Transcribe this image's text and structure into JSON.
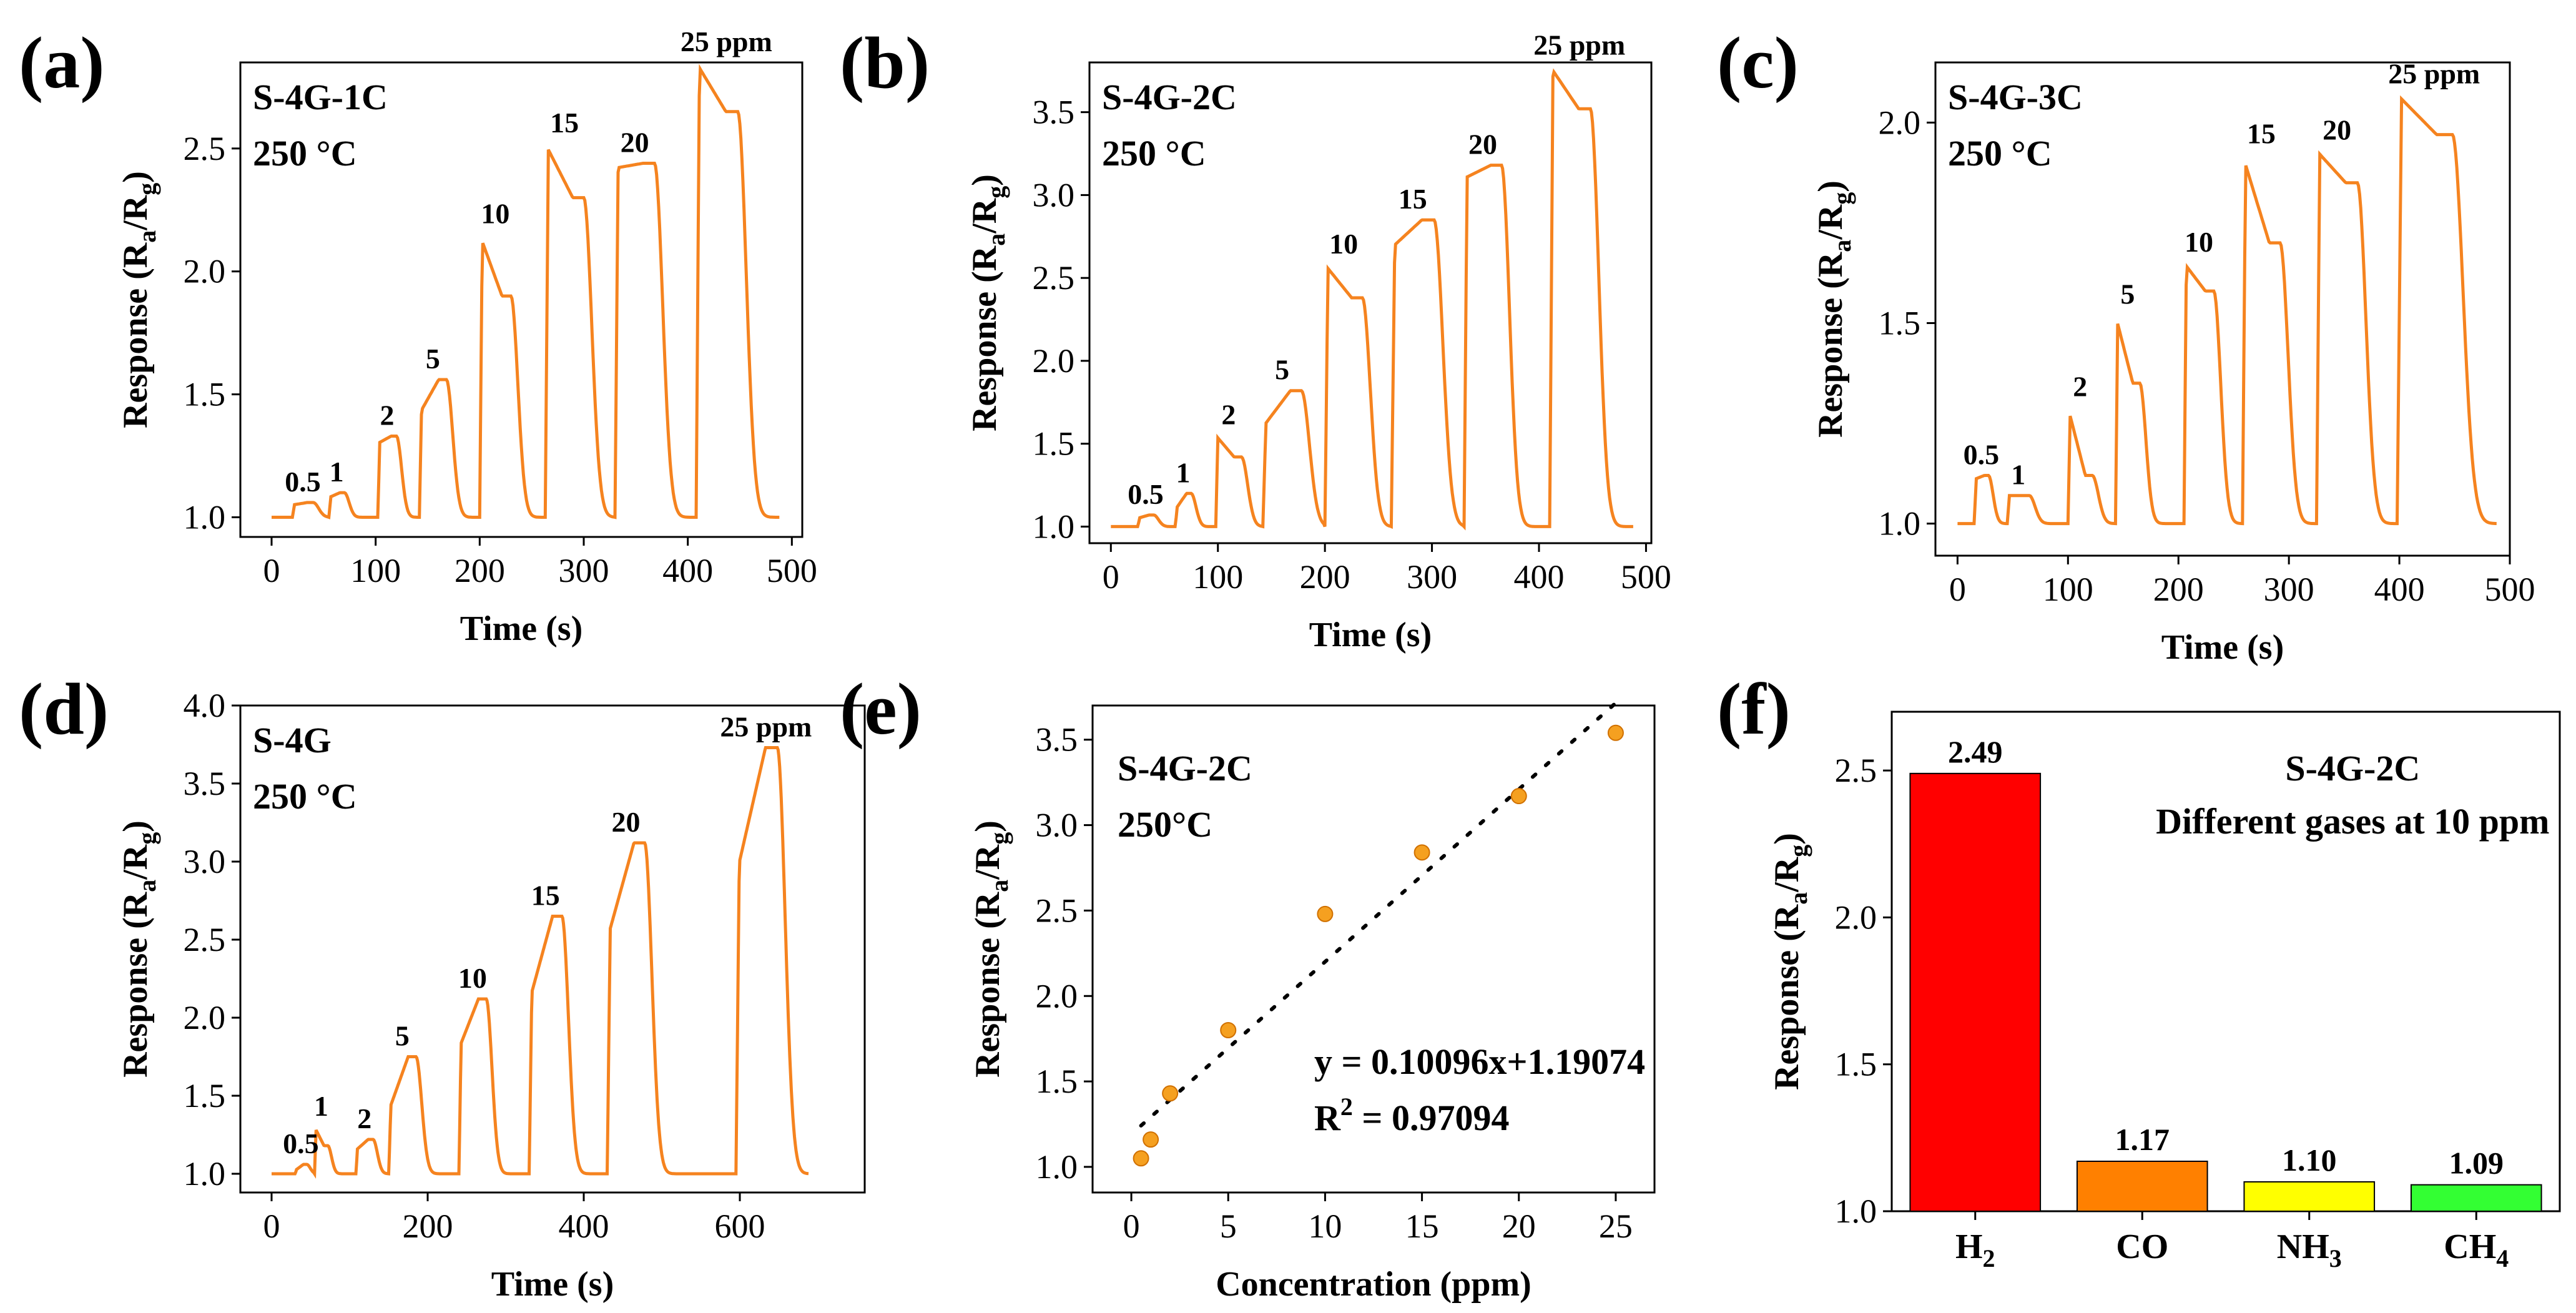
{
  "colors": {
    "curve": "#f5831f",
    "axis": "#000000"
  },
  "chart_data": [
    {
      "id": "a",
      "type": "line",
      "panel_label": "(a)",
      "sample": "S-4G-1C",
      "temperature": "250 °C",
      "xlabel": "Time (s)",
      "ylabel_main": "Response (R",
      "ylabel_sub_a": "a",
      "ylabel_mid": "/R",
      "ylabel_sub_g": "g",
      "ylabel_end": ")",
      "xlim": [
        -30,
        510
      ],
      "ylim": [
        0.92,
        2.85
      ],
      "xticks": [
        0,
        100,
        200,
        300,
        400,
        500
      ],
      "yticks": [
        1.0,
        1.5,
        2.0,
        2.5
      ],
      "pulses": [
        {
          "label": "0.5",
          "on": 20,
          "off": 40,
          "peak": 1.06,
          "start": 1.05
        },
        {
          "label": "1",
          "on": 55,
          "off": 70,
          "peak": 1.1,
          "start": 1.08
        },
        {
          "label": "2",
          "on": 102,
          "off": 120,
          "peak": 1.33,
          "start": 1.3
        },
        {
          "label": "5",
          "on": 142,
          "off": 168,
          "peak": 1.56,
          "start": 1.42
        },
        {
          "label": "10",
          "on": 200,
          "off": 230,
          "peak": 1.9,
          "start": 2.15
        },
        {
          "label": "15",
          "on": 263,
          "off": 300,
          "peak": 2.3,
          "start": 2.52
        },
        {
          "label": "20",
          "on": 330,
          "off": 368,
          "peak": 2.44,
          "start": 2.42
        },
        {
          "label": "25 ppm",
          "on": 408,
          "off": 448,
          "peak": 2.65,
          "start": 2.85
        }
      ]
    },
    {
      "id": "b",
      "type": "line",
      "panel_label": "(b)",
      "sample": "S-4G-2C",
      "temperature": "250 °C",
      "xlabel": "Time (s)",
      "ylabel_main": "Response (R",
      "ylabel_sub_a": "a",
      "ylabel_mid": "/R",
      "ylabel_sub_g": "g",
      "ylabel_end": ")",
      "xlim": [
        -20,
        505
      ],
      "ylim": [
        0.9,
        3.8
      ],
      "xticks": [
        0,
        100,
        200,
        300,
        400,
        500
      ],
      "yticks": [
        1.0,
        1.5,
        2.0,
        2.5,
        3.0,
        3.5
      ],
      "pulses": [
        {
          "label": "0.5",
          "on": 25,
          "off": 40,
          "peak": 1.07,
          "start": 1.05
        },
        {
          "label": "1",
          "on": 60,
          "off": 75,
          "peak": 1.2,
          "start": 1.1
        },
        {
          "label": "2",
          "on": 98,
          "off": 122,
          "peak": 1.42,
          "start": 1.55
        },
        {
          "label": "5",
          "on": 142,
          "off": 178,
          "peak": 1.82,
          "start": 1.6
        },
        {
          "label": "10",
          "on": 200,
          "off": 235,
          "peak": 2.38,
          "start": 2.58
        },
        {
          "label": "15",
          "on": 262,
          "off": 302,
          "peak": 2.85,
          "start": 2.68
        },
        {
          "label": "20",
          "on": 330,
          "off": 365,
          "peak": 3.18,
          "start": 3.1
        },
        {
          "label": "25 ppm",
          "on": 410,
          "off": 448,
          "peak": 3.52,
          "start": 3.78
        }
      ]
    },
    {
      "id": "c",
      "type": "line",
      "panel_label": "(c)",
      "sample": "S-4G-3C",
      "temperature": "250 °C",
      "xlabel": "Time (s)",
      "ylabel_main": "Response (R",
      "ylabel_sub_a": "a",
      "ylabel_mid": "/R",
      "ylabel_sub_g": "g",
      "ylabel_end": ")",
      "xlim": [
        -20,
        500
      ],
      "ylim": [
        0.92,
        2.15
      ],
      "xticks": [
        0,
        100,
        200,
        300,
        400,
        500
      ],
      "yticks": [
        1.0,
        1.5,
        2.0
      ],
      "pulses": [
        {
          "label": "0.5",
          "on": 15,
          "off": 28,
          "peak": 1.12,
          "start": 1.11
        },
        {
          "label": "1",
          "on": 45,
          "off": 65,
          "peak": 1.07,
          "start": 1.07
        },
        {
          "label": "2",
          "on": 100,
          "off": 122,
          "peak": 1.12,
          "start": 1.29
        },
        {
          "label": "5",
          "on": 143,
          "off": 165,
          "peak": 1.35,
          "start": 1.52
        },
        {
          "label": "10",
          "on": 205,
          "off": 232,
          "peak": 1.58,
          "start": 1.65
        },
        {
          "label": "15",
          "on": 258,
          "off": 292,
          "peak": 1.7,
          "start": 1.92
        },
        {
          "label": "20",
          "on": 325,
          "off": 362,
          "peak": 1.85,
          "start": 1.93
        },
        {
          "label": "25 ppm",
          "on": 398,
          "off": 448,
          "peak": 1.97,
          "start": 2.07
        }
      ]
    },
    {
      "id": "d",
      "type": "line",
      "panel_label": "(d)",
      "sample": "S-4G",
      "temperature": "250 °C",
      "xlabel": "Time (s)",
      "ylabel_main": "Response (R",
      "ylabel_sub_a": "a",
      "ylabel_mid": "/R",
      "ylabel_sub_g": "g",
      "ylabel_end": ")",
      "xlim": [
        -40,
        760
      ],
      "ylim": [
        0.88,
        4.0
      ],
      "xticks": [
        0,
        200,
        400,
        600
      ],
      "yticks": [
        1.0,
        1.5,
        2.0,
        2.5,
        3.0,
        3.5,
        4.0
      ],
      "pulses": [
        {
          "label": "0.5",
          "on": 30,
          "off": 45,
          "peak": 1.06,
          "start": 1.02
        },
        {
          "label": "1",
          "on": 55,
          "off": 72,
          "peak": 1.18,
          "start": 1.3
        },
        {
          "label": "2",
          "on": 108,
          "off": 130,
          "peak": 1.22,
          "start": 1.15
        },
        {
          "label": "5",
          "on": 150,
          "off": 185,
          "peak": 1.75,
          "start": 1.4
        },
        {
          "label": "10",
          "on": 240,
          "off": 275,
          "peak": 2.12,
          "start": 1.8
        },
        {
          "label": "15",
          "on": 330,
          "off": 372,
          "peak": 2.65,
          "start": 2.1
        },
        {
          "label": "20",
          "on": 430,
          "off": 478,
          "peak": 3.12,
          "start": 2.5
        },
        {
          "label": "25 ppm",
          "on": 595,
          "off": 648,
          "peak": 3.73,
          "start": 2.9
        }
      ]
    },
    {
      "id": "e",
      "type": "scatter",
      "panel_label": "(e)",
      "sample": "S-4G-2C",
      "temperature": "250°C",
      "xlabel": "Concentration (ppm)",
      "ylabel_main": "Response (R",
      "ylabel_sub_a": "a",
      "ylabel_mid": "/R",
      "ylabel_sub_g": "g",
      "ylabel_end": ")",
      "xlim": [
        -2,
        27
      ],
      "ylim": [
        0.85,
        3.7
      ],
      "xticks": [
        0,
        5,
        10,
        15,
        20,
        25
      ],
      "yticks": [
        1.0,
        1.5,
        2.0,
        2.5,
        3.0,
        3.5
      ],
      "x": [
        0.5,
        1,
        2,
        5,
        10,
        15,
        20,
        25
      ],
      "y": [
        1.05,
        1.16,
        1.43,
        1.8,
        2.48,
        2.84,
        3.17,
        3.54
      ],
      "fit": {
        "slope": 0.10096,
        "intercept": 1.19074,
        "x_range": [
          0.5,
          25
        ]
      },
      "equation": "y = 0.10096x+1.19074",
      "r2_prefix": "R",
      "r2_sup": "2",
      "r2_value": " = 0.97094",
      "marker_color": "#f5a020"
    },
    {
      "id": "f",
      "type": "bar",
      "panel_label": "(f)",
      "title_line1": "S-4G-2C",
      "title_line2": "Different gases at 10 ppm",
      "ylabel_main": "Response (R",
      "ylabel_sub_a": "a",
      "ylabel_mid": "/R",
      "ylabel_sub_g": "g",
      "ylabel_end": ")",
      "ylim": [
        1.0,
        2.7
      ],
      "yticks": [
        1.0,
        1.5,
        2.0,
        2.5
      ],
      "categories": [
        {
          "main": "H",
          "sub": "2",
          "value": 2.49,
          "label": "2.49",
          "color": "#ff0000"
        },
        {
          "main": "CO",
          "sub": "",
          "value": 1.17,
          "label": "1.17",
          "color": "#ff8000"
        },
        {
          "main": "NH",
          "sub": "3",
          "value": 1.1,
          "label": "1.10",
          "color": "#ffff00"
        },
        {
          "main": "CH",
          "sub": "4",
          "value": 1.09,
          "label": "1.09",
          "color": "#33ff33"
        }
      ]
    }
  ]
}
